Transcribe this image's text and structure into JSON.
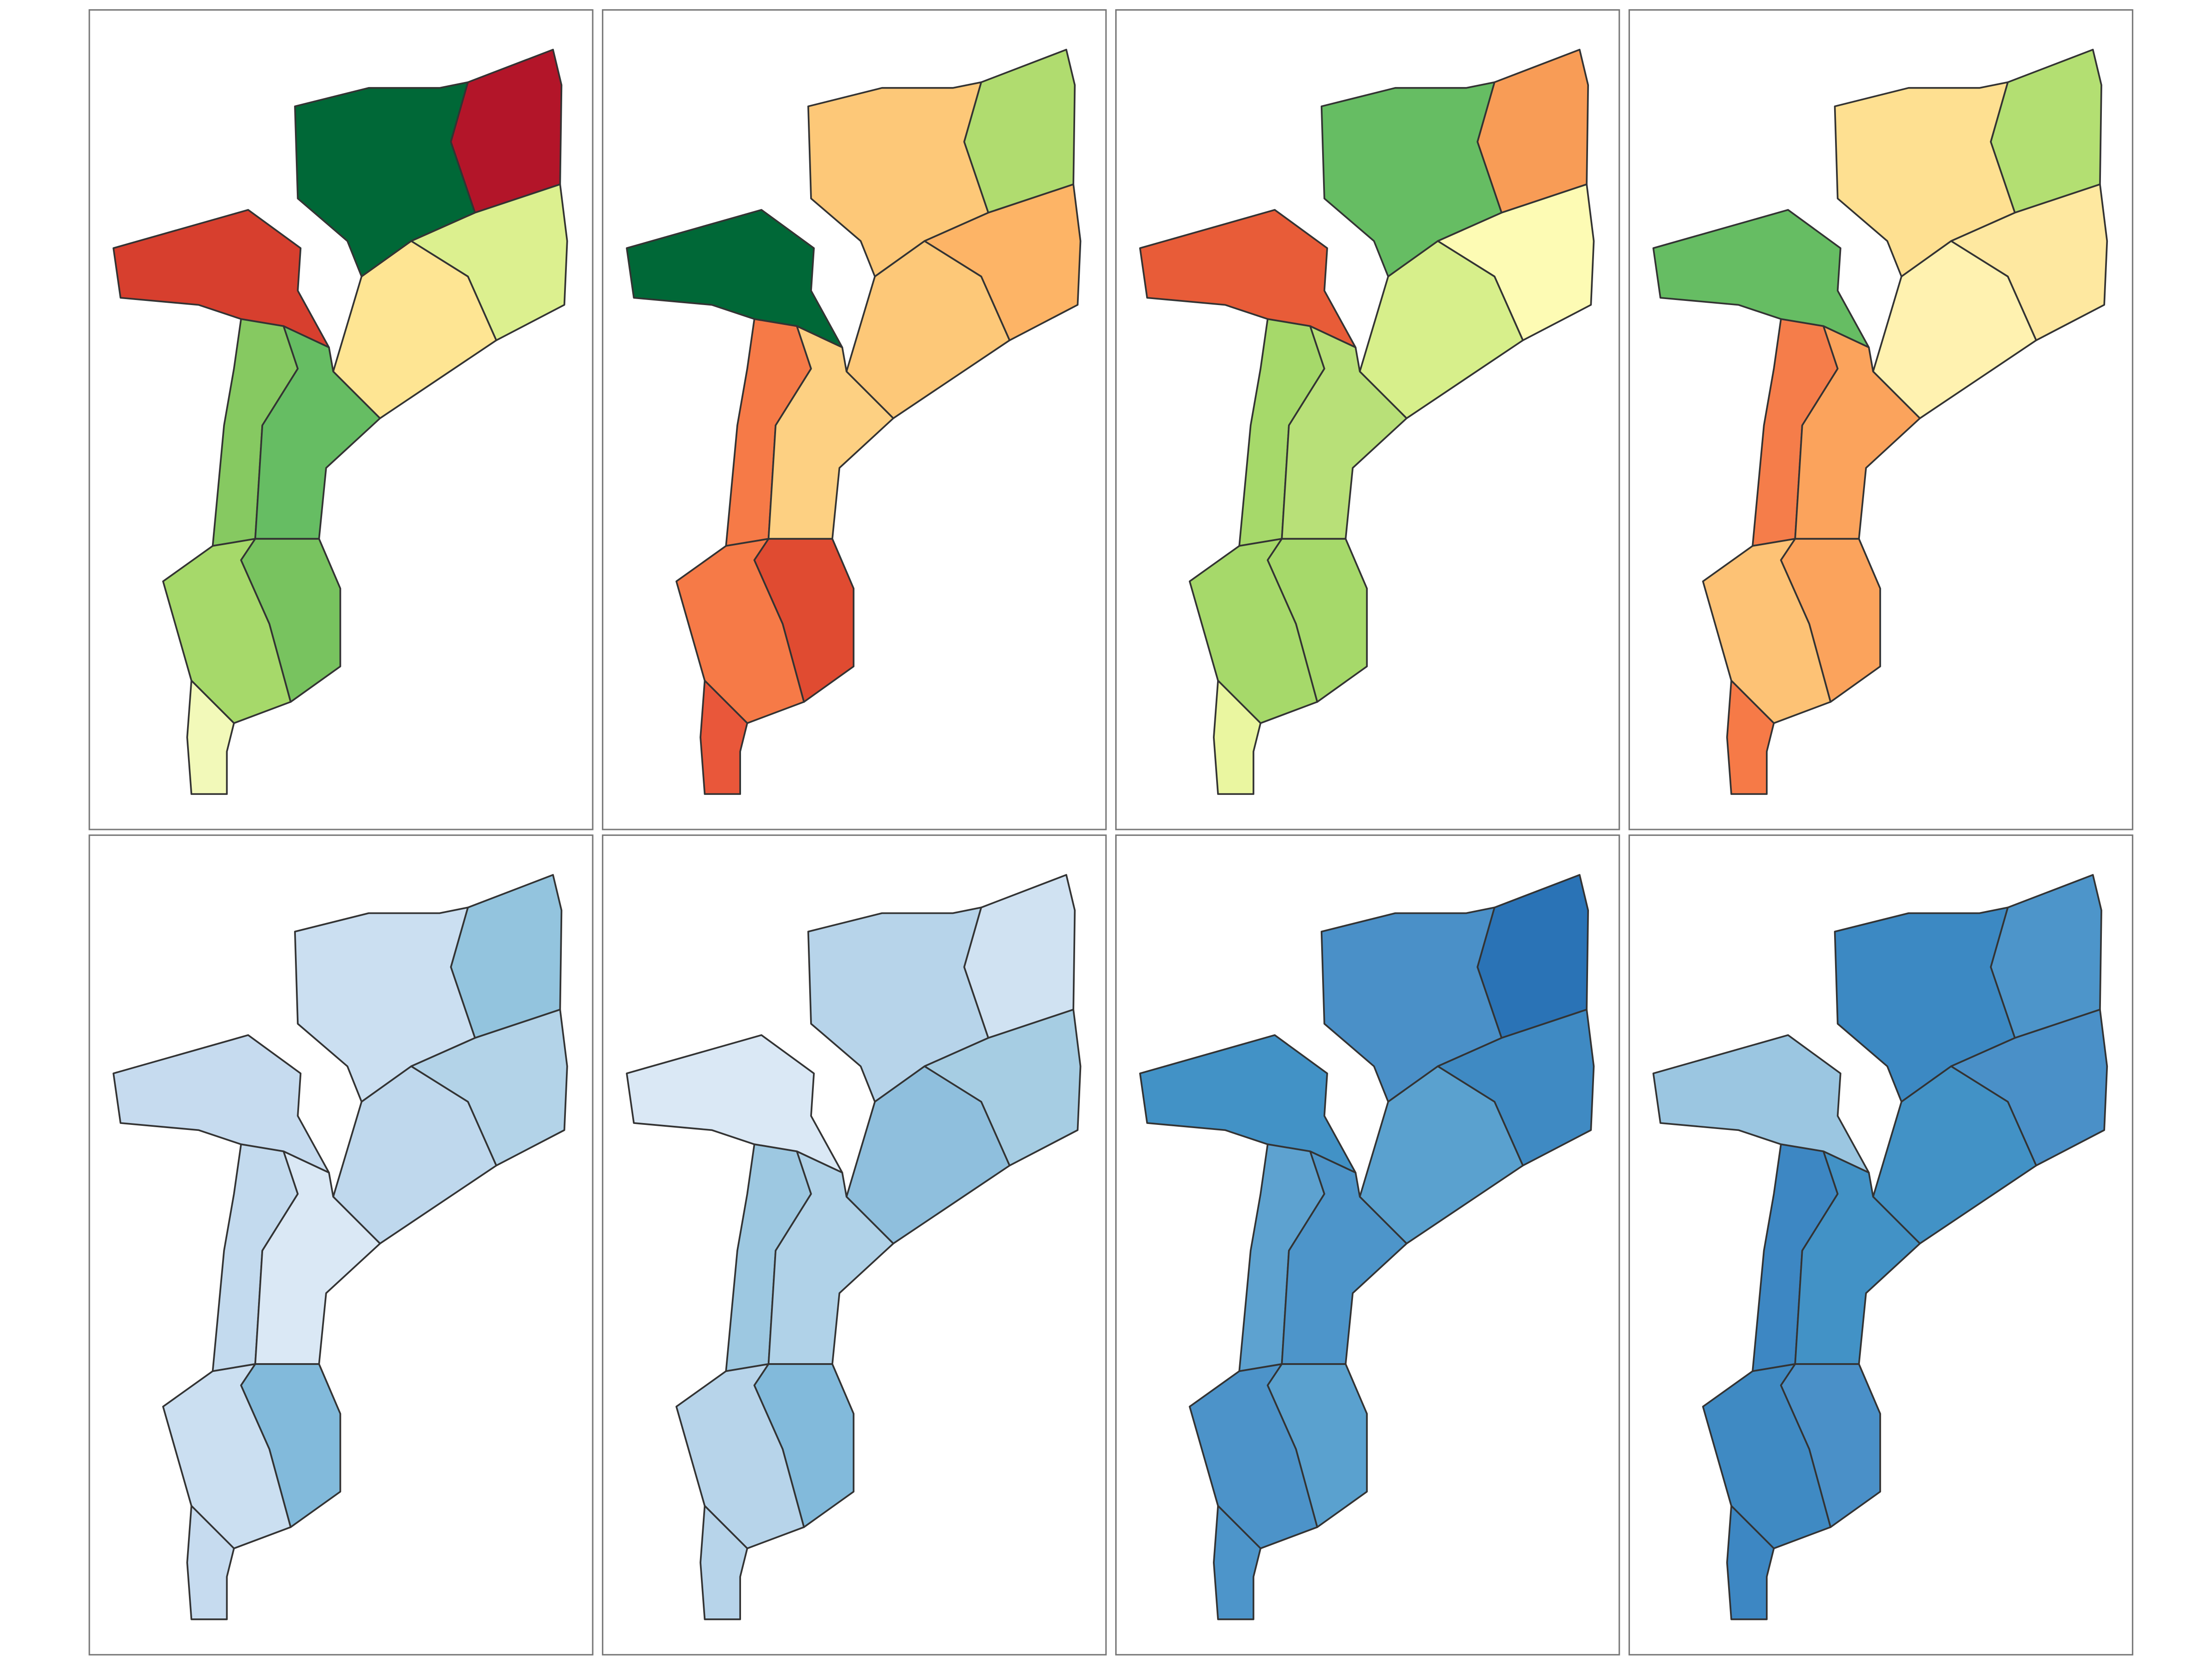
{
  "panels": [
    {
      "fills": [
        "#006837",
        "#b31529",
        "#d73f2e",
        "#dcf08f",
        "#fee593",
        "#86c961",
        "#66bd63",
        "#a6d96a",
        "#78c35f",
        "#f2f9b9"
      ]
    },
    {
      "fills": [
        "#fdc878",
        "#b0dc6f",
        "#006837",
        "#fdb466",
        "#fdc878",
        "#f67a47",
        "#fdd082",
        "#f67a47",
        "#e04b31",
        "#e9573a"
      ]
    },
    {
      "fills": [
        "#66bd63",
        "#f89c56",
        "#e85c38",
        "#fdfbb4",
        "#d7ef8b",
        "#a6d96a",
        "#b8e078",
        "#a6d96a",
        "#a6d96a",
        "#eaf6a0"
      ]
    },
    {
      "fills": [
        "#fee091",
        "#b3df72",
        "#66bd63",
        "#fee8a0",
        "#fff2b0",
        "#f57d4a",
        "#fba35c",
        "#fdc275",
        "#fba35c",
        "#f67a47"
      ]
    },
    {
      "fills": [
        "#cbdff1",
        "#93c4de",
        "#c6dbef",
        "#b3d3e8",
        "#bfd8ed",
        "#c3daee",
        "#dae8f5",
        "#cbdff1",
        "#82badb",
        "#c6dbef"
      ]
    },
    {
      "fills": [
        "#b7d4ea",
        "#d0e2f2",
        "#dae8f5",
        "#a6cde3",
        "#8fbfdd",
        "#9dc8e1",
        "#b0d2e8",
        "#b7d4ea",
        "#82badb",
        "#b7d4ea"
      ]
    },
    {
      "fills": [
        "#4a90c8",
        "#2a73b6",
        "#4292c6",
        "#3f8ac3",
        "#5aa1cf",
        "#5da2d0",
        "#4d95ca",
        "#4c93c9",
        "#5aa1cf",
        "#4d95ca"
      ]
    },
    {
      "fills": [
        "#3c89c3",
        "#4d95ca",
        "#9bc6e1",
        "#4a90c8",
        "#4292c6",
        "#3d87c3",
        "#4292c6",
        "#3f8ac3",
        "#4a90c8",
        "#3d87c3"
      ]
    }
  ]
}
